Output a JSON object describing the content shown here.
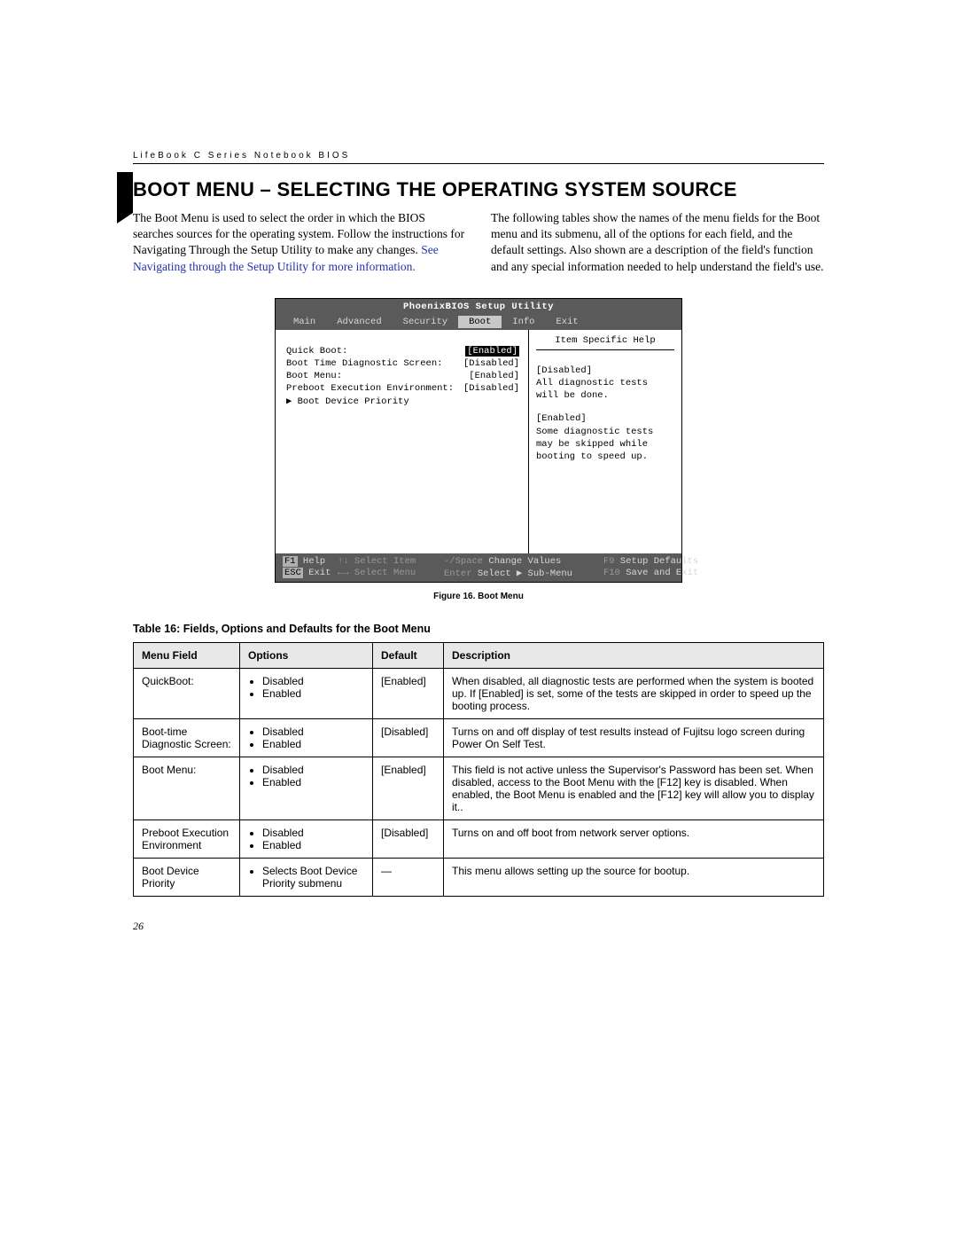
{
  "header_text": "LifeBook C Series Notebook BIOS",
  "main_title": "BOOT MENU – SELECTING THE OPERATING SYSTEM SOURCE",
  "intro": {
    "left_para_1": "The Boot Menu is used to select the order in which the BIOS searches sources for the operating system. Follow the instructions for Navigating Through the Setup Utility to make any changes. ",
    "left_link": "See Navigating through the Setup Utility for more information.",
    "right_para": "The following tables show the names of the menu fields for the Boot menu and its submenu, all of the options for each field, and the default settings. Also shown are a description of the field's function and any special information needed to help understand the field's use."
  },
  "bios": {
    "title": "PhoenixBIOS Setup Utility",
    "tabs": [
      "Main",
      "Advanced",
      "Security",
      "Boot",
      "Info",
      "Exit"
    ],
    "active_tab": "Boot",
    "rows": [
      {
        "label": "Quick Boot:",
        "value": "[Enabled]",
        "highlighted": true
      },
      {
        "label": "Boot Time Diagnostic Screen:",
        "value": "[Disabled]",
        "highlighted": false
      },
      {
        "label": "Boot Menu:",
        "value": "[Enabled]",
        "highlighted": false
      },
      {
        "label": "Preboot Execution Environment:",
        "value": "[Disabled]",
        "highlighted": false
      }
    ],
    "submenu_row": "▶ Boot Device Priority",
    "help_title": "Item Specific Help",
    "help": [
      "[Disabled]\nAll diagnostic tests will be done.",
      "[Enabled]\nSome diagnostic tests may be skipped while booting to speed up."
    ],
    "footer": {
      "r1c1_k": "F1",
      "r1c1_t": "Help",
      "r1c2_k": "↑↓",
      "r1c2_t": "Select Item",
      "r1c3_k": "-/Space",
      "r1c3_t": "Change Values",
      "r1c4_k": "F9",
      "r1c4_t": "Setup Defaults",
      "r2c1_k": "ESC",
      "r2c1_t": "Exit",
      "r2c2_k": "←→",
      "r2c2_t": "Select Menu",
      "r2c3_k": "Enter",
      "r2c3_t": "Select ▶ Sub-Menu",
      "r2c4_k": "F10",
      "r2c4_t": "Save and Exit"
    }
  },
  "figure_caption": "Figure 16.  Boot Menu",
  "table_title": "Table 16: Fields, Options and Defaults for the Boot Menu",
  "table": {
    "headers": [
      "Menu Field",
      "Options",
      "Default",
      "Description"
    ],
    "rows": [
      {
        "field": "QuickBoot:",
        "options": [
          "Disabled",
          "Enabled"
        ],
        "default": "[Enabled]",
        "desc": "When disabled, all diagnostic tests are performed when the system is booted up. If [Enabled] is set, some of the tests are skipped in order to speed up the booting process."
      },
      {
        "field": "Boot-time Diagnostic Screen:",
        "options": [
          "Disabled",
          "Enabled"
        ],
        "default": "[Disabled]",
        "desc": "Turns on and off display of test results instead of Fujitsu logo screen during Power On Self Test."
      },
      {
        "field": "Boot Menu:",
        "options": [
          "Disabled",
          "Enabled"
        ],
        "default": "[Enabled]",
        "desc": "This field is not active unless the Supervisor's Password has been set. When disabled, access to the Boot Menu with the [F12] key is disabled. When enabled, the Boot Menu is enabled and the [F12] key will allow you to display it.."
      },
      {
        "field": "Preboot Execution Environment",
        "options": [
          "Disabled",
          "Enabled"
        ],
        "default": "[Disabled]",
        "desc": "Turns on and off boot from network server options."
      },
      {
        "field": "Boot Device Priority",
        "options": [
          "Selects Boot Device Priority submenu"
        ],
        "default": "—",
        "desc": "This menu allows setting up the source for bootup."
      }
    ]
  },
  "page_number": "26",
  "colors": {
    "link": "#2030b0",
    "bios_bar": "#5a5a5a",
    "bios_tab_active_bg": "#c8c8c8",
    "table_header_bg": "#e8e8e8"
  }
}
